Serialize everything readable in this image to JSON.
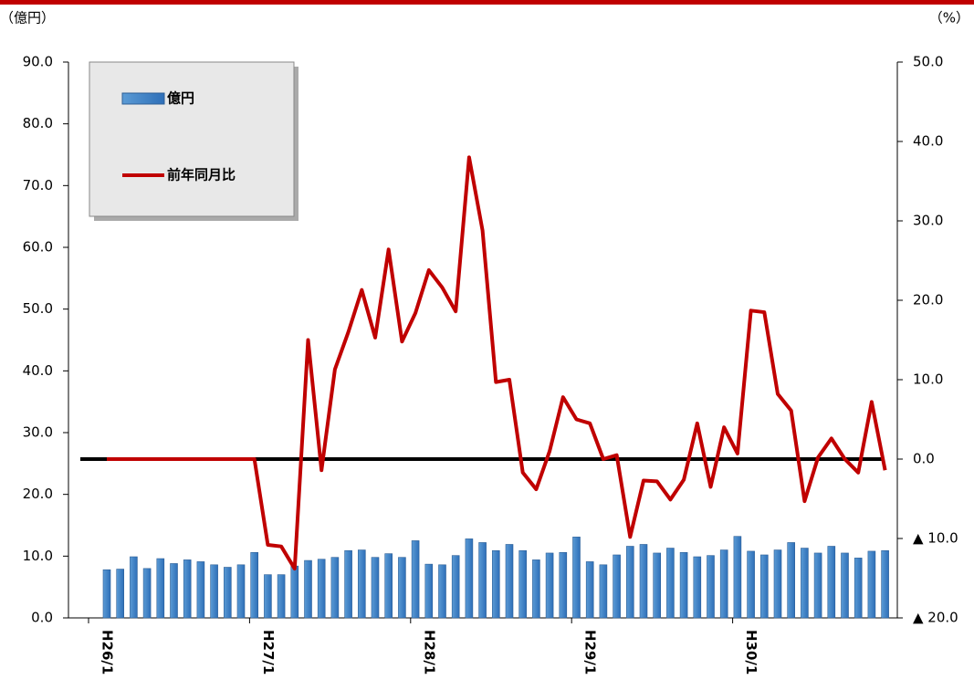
{
  "chart_data": {
    "type": "combo",
    "y_label": "（億円）",
    "y2_label": "（%）",
    "categories": [
      "H26/1",
      null,
      null,
      null,
      null,
      null,
      null,
      null,
      null,
      null,
      null,
      null,
      "H27/1",
      null,
      null,
      null,
      null,
      null,
      null,
      null,
      null,
      null,
      null,
      null,
      "H28/1",
      null,
      null,
      null,
      null,
      null,
      null,
      null,
      null,
      null,
      null,
      null,
      "H29/1",
      null,
      null,
      null,
      null,
      null,
      null,
      null,
      null,
      null,
      null,
      null,
      "H30/1",
      null,
      null,
      null,
      null,
      null,
      null,
      null,
      null,
      null,
      null
    ],
    "series": [
      {
        "name": "億円",
        "type": "bar",
        "color": "#5b9bd5",
        "values": [
          7.8,
          7.9,
          9.9,
          8.0,
          9.6,
          8.8,
          9.4,
          9.1,
          8.6,
          8.2,
          8.6,
          10.6,
          7.0,
          7.0,
          8.4,
          9.3,
          9.5,
          9.8,
          10.9,
          11.0,
          9.8,
          10.4,
          9.8,
          12.5,
          8.7,
          8.6,
          10.1,
          12.8,
          12.2,
          10.9,
          11.9,
          10.9,
          9.4,
          10.5,
          10.6,
          13.1,
          9.1,
          8.6,
          10.2,
          11.6,
          11.9,
          10.5,
          11.3,
          10.6,
          9.9,
          10.1,
          11.0,
          13.2,
          10.8,
          10.2,
          11.0,
          12.2,
          11.3,
          10.5,
          11.6,
          10.5,
          9.7,
          10.8,
          10.9
        ]
      },
      {
        "name": "前年同月比",
        "type": "line",
        "axis": "y2",
        "color": "#c00000",
        "values": [
          0,
          0,
          0,
          0,
          0,
          0,
          0,
          0,
          0,
          0,
          0,
          0,
          -10.8,
          -11.0,
          -13.8,
          15.0,
          -1.4,
          11.3,
          16.0,
          21.3,
          15.3,
          26.4,
          14.8,
          18.4,
          23.8,
          21.6,
          18.6,
          38.0,
          28.8,
          9.7,
          10.0,
          -1.7,
          -3.8,
          1.0,
          7.8,
          5.0,
          4.5,
          0.0,
          0.5,
          -9.8,
          -2.7,
          -2.8,
          -5.1,
          -2.6,
          4.5,
          -3.5,
          4.0,
          0.7,
          18.7,
          18.5,
          8.2,
          6.1,
          -5.3,
          0.2,
          2.6,
          0.0,
          -1.7,
          7.2,
          -1.4
        ]
      }
    ],
    "ylim": [
      0,
      90
    ],
    "yticks": [
      {
        "value": 0,
        "label": "0.0"
      },
      {
        "value": 10,
        "label": "10.0"
      },
      {
        "value": 20,
        "label": "20.0"
      },
      {
        "value": 30,
        "label": "30.0"
      },
      {
        "value": 40,
        "label": "40.0"
      },
      {
        "value": 50,
        "label": "50.0"
      },
      {
        "value": 60,
        "label": "60.0"
      },
      {
        "value": 70,
        "label": "70.0"
      },
      {
        "value": 80,
        "label": "80.0"
      },
      {
        "value": 90,
        "label": "90.0"
      }
    ],
    "y2lim": [
      -20,
      50
    ],
    "y2ticks": [
      {
        "value": -20,
        "label": "▲ 20.0"
      },
      {
        "value": -10,
        "label": "▲ 10.0"
      },
      {
        "value": 0,
        "label": "0.0"
      },
      {
        "value": 10,
        "label": "10.0"
      },
      {
        "value": 20,
        "label": "20.0"
      },
      {
        "value": 30,
        "label": "30.0"
      },
      {
        "value": 40,
        "label": "40.0"
      },
      {
        "value": 50,
        "label": "50.0"
      }
    ],
    "legend": "top-left"
  }
}
